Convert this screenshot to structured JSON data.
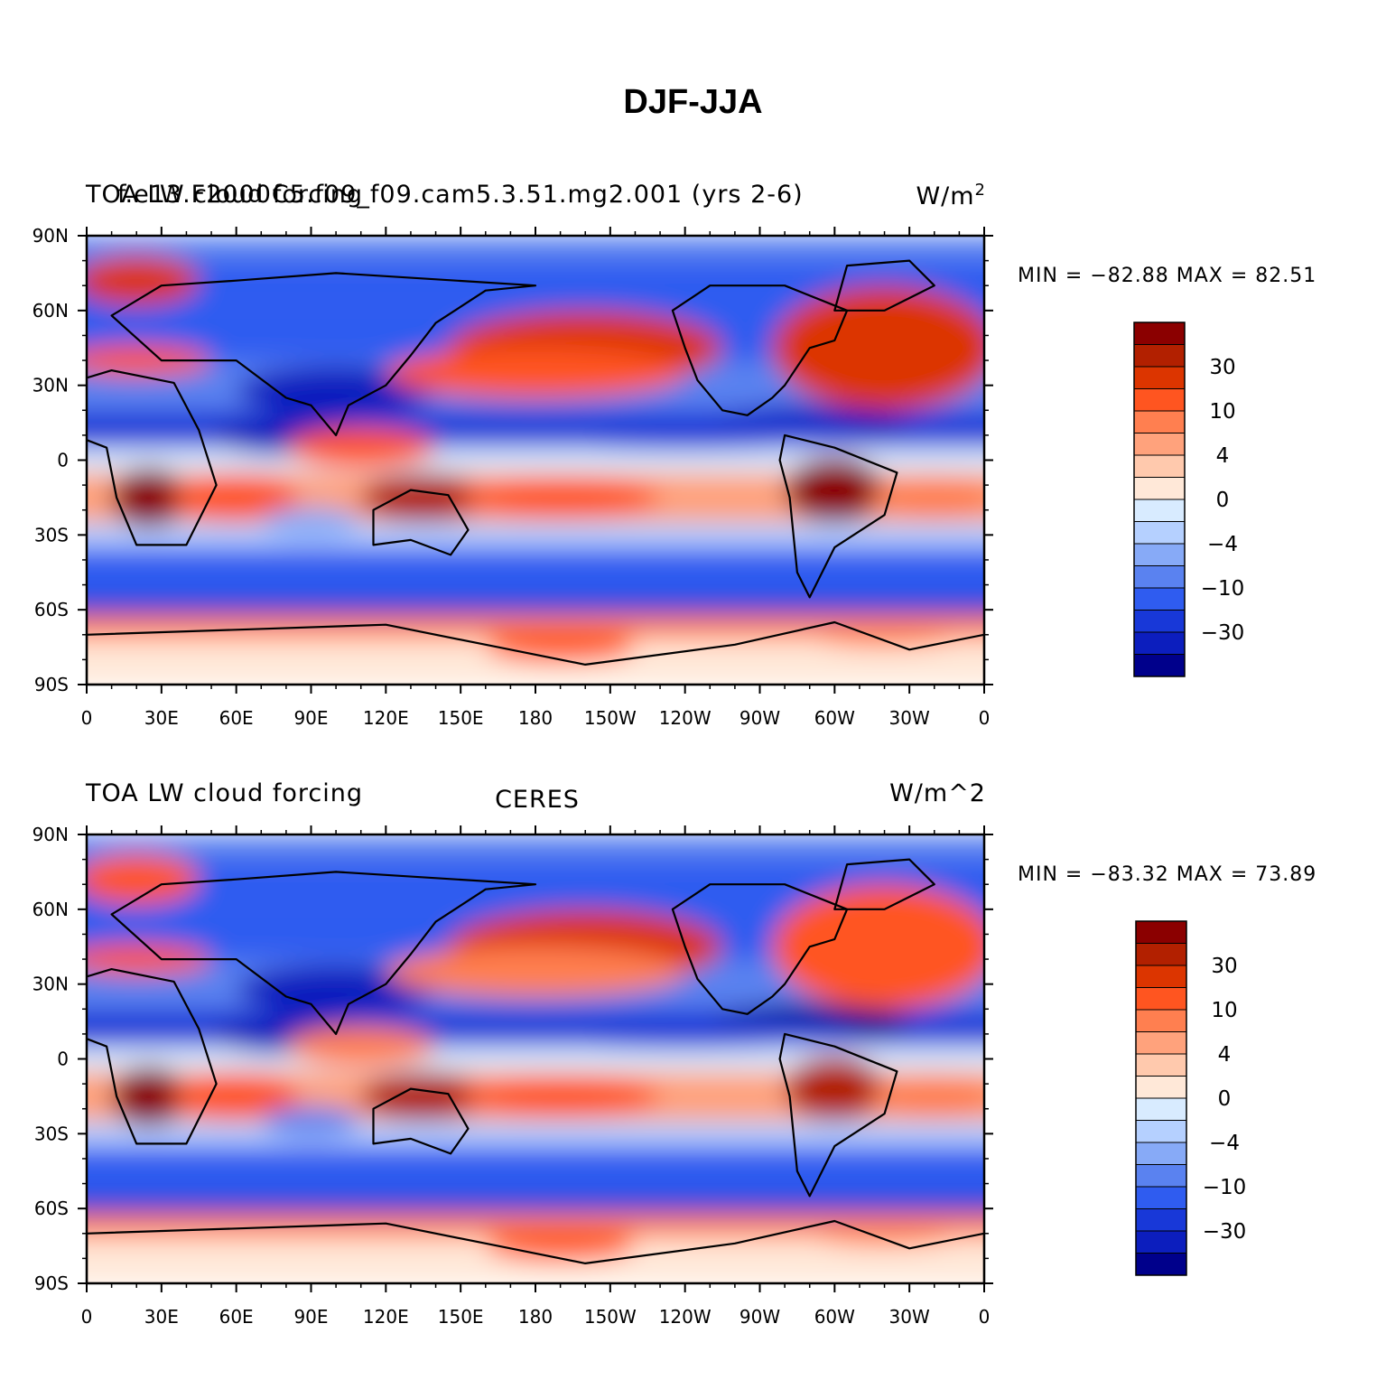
{
  "title": "DJF-JJA",
  "panels": [
    {
      "left_label": "TOA LW cloud forcing",
      "center_label": "f.e13.F2000C5.f09_f09.cam5.3.51.mg2.001 (yrs 2-6)",
      "right_label": "W/m",
      "right_label_sup": "2",
      "min_label": "MIN = −82.88",
      "max_label": "MAX =  82.51"
    },
    {
      "left_label": "TOA LW cloud forcing",
      "center_label": "CERES",
      "right_label": "W/m^2",
      "right_label_sup": "",
      "min_label": "MIN = −83.32",
      "max_label": "MAX =  73.89"
    }
  ],
  "lon_ticks": [
    "0",
    "30E",
    "60E",
    "90E",
    "120E",
    "150E",
    "180",
    "150W",
    "120W",
    "90W",
    "60W",
    "30W",
    "0"
  ],
  "lat_ticks": [
    "90N",
    "60N",
    "30N",
    "0",
    "30S",
    "60S",
    "90S"
  ],
  "colorbar": {
    "labels": [
      "30",
      "10",
      "4",
      "0",
      "−4",
      "−10",
      "−30"
    ],
    "colors": [
      "#8b0000",
      "#b22000",
      "#dc3500",
      "#ff5520",
      "#ff7f50",
      "#ffa27c",
      "#ffc9ad",
      "#ffe8d8",
      "#d8ebff",
      "#b5d0ff",
      "#87aaf7",
      "#5a82f0",
      "#2f5cf0",
      "#1838d8",
      "#0c1ebe",
      "#00008b"
    ]
  },
  "chart_data": [
    {
      "type": "heatmap",
      "title": "f.e13.F2000C5.f09_f09.cam5.3.51.mg2.001 (yrs 2-6)",
      "variable": "TOA LW cloud forcing",
      "units": "W/m^2",
      "min": -82.88,
      "max": 82.51,
      "x_ticks": [
        "0",
        "30E",
        "60E",
        "90E",
        "120E",
        "150E",
        "180",
        "150W",
        "120W",
        "90W",
        "60W",
        "30W",
        "0"
      ],
      "y_ticks": [
        "90N",
        "60N",
        "30N",
        "0",
        "30S",
        "60S",
        "90S"
      ],
      "colorbar_levels": [
        -30,
        -10,
        -4,
        0,
        4,
        10,
        30
      ]
    },
    {
      "type": "heatmap",
      "title": "CERES",
      "variable": "TOA LW cloud forcing",
      "units": "W/m^2",
      "min": -83.32,
      "max": 73.89,
      "x_ticks": [
        "0",
        "30E",
        "60E",
        "90E",
        "120E",
        "150E",
        "180",
        "150W",
        "120W",
        "90W",
        "60W",
        "30W",
        "0"
      ],
      "y_ticks": [
        "90N",
        "60N",
        "30N",
        "0",
        "30S",
        "60S",
        "90S"
      ],
      "colorbar_levels": [
        -30,
        -10,
        -4,
        0,
        4,
        10,
        30
      ]
    }
  ]
}
